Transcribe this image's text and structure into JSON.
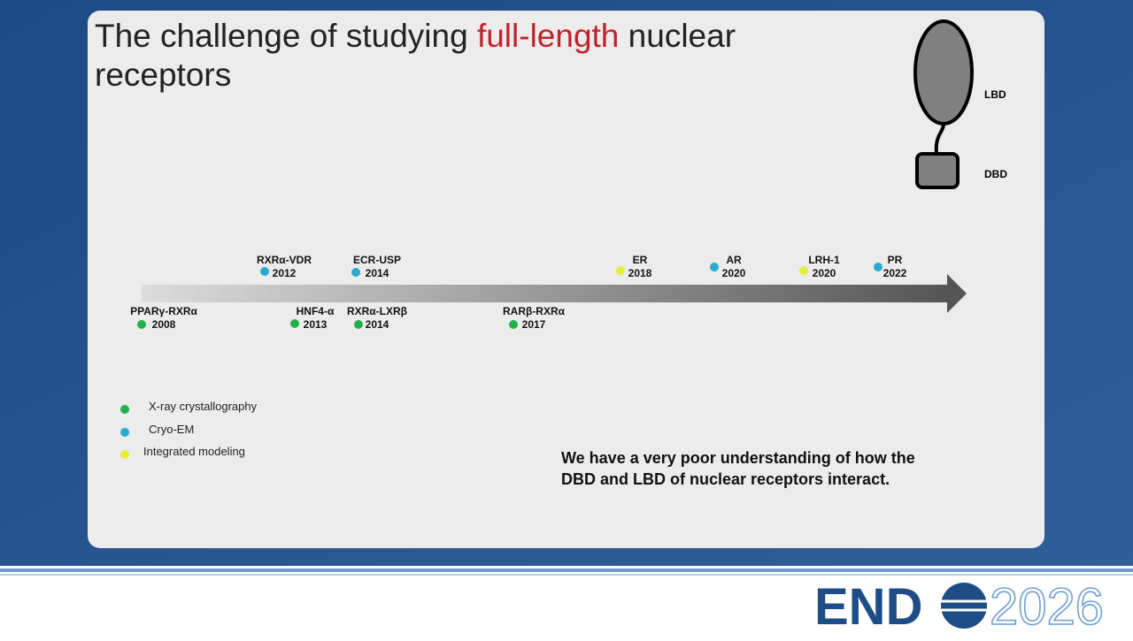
{
  "slide": {
    "title": {
      "before": "The challenge of studying ",
      "highlight": "full-length",
      "after_line1": " nuclear",
      "line2": "receptors"
    },
    "diagram": {
      "lbd": "LBD",
      "dbd": "DBD"
    },
    "methods": [
      {
        "name": "X-ray crystallography",
        "color": "#22b24c",
        "events": [
          {
            "name": "PPARγ-RXRα",
            "year": "2008"
          },
          {
            "name": "HNF4-α",
            "year": "2013"
          },
          {
            "name": "RXRα-LXRβ",
            "year": "2014"
          },
          {
            "name": "RARβ-RXRα",
            "year": "2017"
          }
        ]
      },
      {
        "name": "Cryo-EM",
        "color": "#2aa9d2",
        "events": [
          {
            "name": "RXRα-VDR",
            "year": "2012"
          },
          {
            "name": "ECR-USP",
            "year": "2014"
          },
          {
            "name": "AR",
            "year": "2020"
          },
          {
            "name": "PR",
            "year": "2022"
          }
        ]
      },
      {
        "name": "Integrated modeling",
        "color": "#e4ee3a",
        "events": [
          {
            "name": "ER",
            "year": "2018"
          },
          {
            "name": "LRH-1",
            "year": "2020"
          }
        ]
      }
    ],
    "statement": {
      "line1": "We have a very poor understanding of how the",
      "line2": "DBD and LBD of nuclear receptors interact."
    }
  },
  "footer": {
    "logo_left": "END",
    "logo_right": "2026"
  }
}
